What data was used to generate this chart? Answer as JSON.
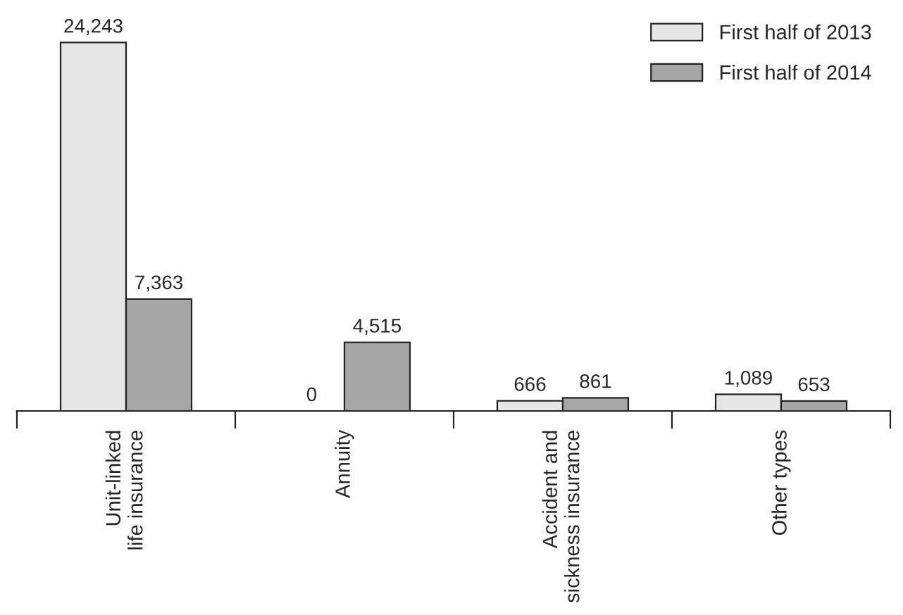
{
  "chart_data": {
    "type": "bar",
    "categories": [
      "Unit-linked\nlife insurance",
      "Annuity",
      "Accident and\nsickness insurance",
      "Other types"
    ],
    "series": [
      {
        "name": "First half of 2013",
        "color": "#e6e6e6",
        "values": [
          24243,
          0,
          666,
          1089
        ],
        "value_labels": [
          "24,243",
          "0",
          "666",
          "1,089"
        ]
      },
      {
        "name": "First half of 2014",
        "color": "#a6a6a6",
        "values": [
          7363,
          4515,
          861,
          653
        ],
        "value_labels": [
          "7,363",
          "4,515",
          "861",
          "653"
        ]
      }
    ],
    "legend": "top right",
    "grid": false
  }
}
